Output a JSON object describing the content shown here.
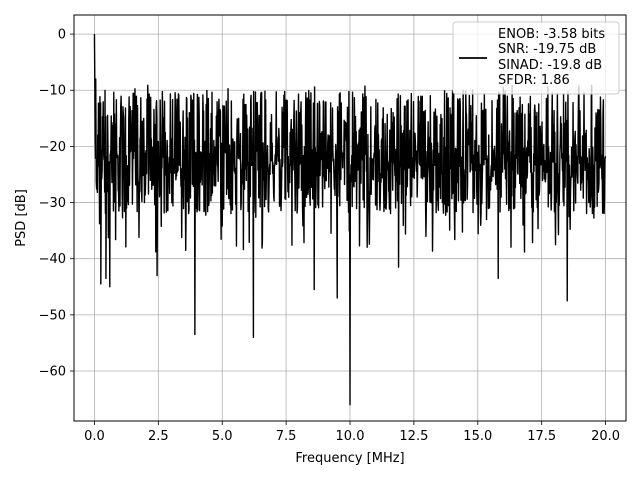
{
  "chart_data": {
    "type": "line",
    "xlabel": "Frequency [MHz]",
    "ylabel": "PSD [dB]",
    "xlim": [
      -0.8,
      20.8
    ],
    "ylim": [
      -68.9,
      3.4
    ],
    "x_ticks": [
      0.0,
      2.5,
      5.0,
      7.5,
      10.0,
      12.5,
      15.0,
      17.5,
      20.0
    ],
    "x_tick_labels": [
      "0.0",
      "2.5",
      "5.0",
      "7.5",
      "10.0",
      "12.5",
      "15.0",
      "17.5",
      "20.0"
    ],
    "y_ticks": [
      0,
      -10,
      -20,
      -30,
      -40,
      -50,
      -60
    ],
    "y_tick_labels": [
      "0",
      "−10",
      "−20",
      "−30",
      "−40",
      "−50",
      "−60"
    ],
    "grid": true,
    "legend_position": "top-right",
    "legend_lines": [
      "ENOB: -3.58 bits",
      "SNR: -19.75 dB",
      "SINAD: -19.8 dB",
      "SFDR: 1.86"
    ],
    "series": [
      {
        "color": "#000000",
        "description": "Noise-like PSD spanning 0–20 MHz, mostly between about -35 dB and -10 dB, with a 0 dB peak at DC",
        "x_range": [
          0.0,
          20.0
        ],
        "typical_upper_envelope_db": -12,
        "typical_lower_envelope_db": -32,
        "dc_value_db": 0.0,
        "notable_points": [
          {
            "x": 0.0,
            "y": 0.0
          },
          {
            "x": 0.05,
            "y": -8.0
          },
          {
            "x": 0.25,
            "y": -44.5
          },
          {
            "x": 0.45,
            "y": -43.5
          },
          {
            "x": 0.6,
            "y": -45.0
          },
          {
            "x": 2.45,
            "y": -43.0
          },
          {
            "x": 3.93,
            "y": -53.5
          },
          {
            "x": 6.22,
            "y": -54.0
          },
          {
            "x": 8.6,
            "y": -45.5
          },
          {
            "x": 9.5,
            "y": -47.0
          },
          {
            "x": 10.0,
            "y": -66.0
          },
          {
            "x": 11.9,
            "y": -41.5
          },
          {
            "x": 15.8,
            "y": -43.5
          },
          {
            "x": 18.5,
            "y": -47.5
          }
        ]
      }
    ]
  }
}
